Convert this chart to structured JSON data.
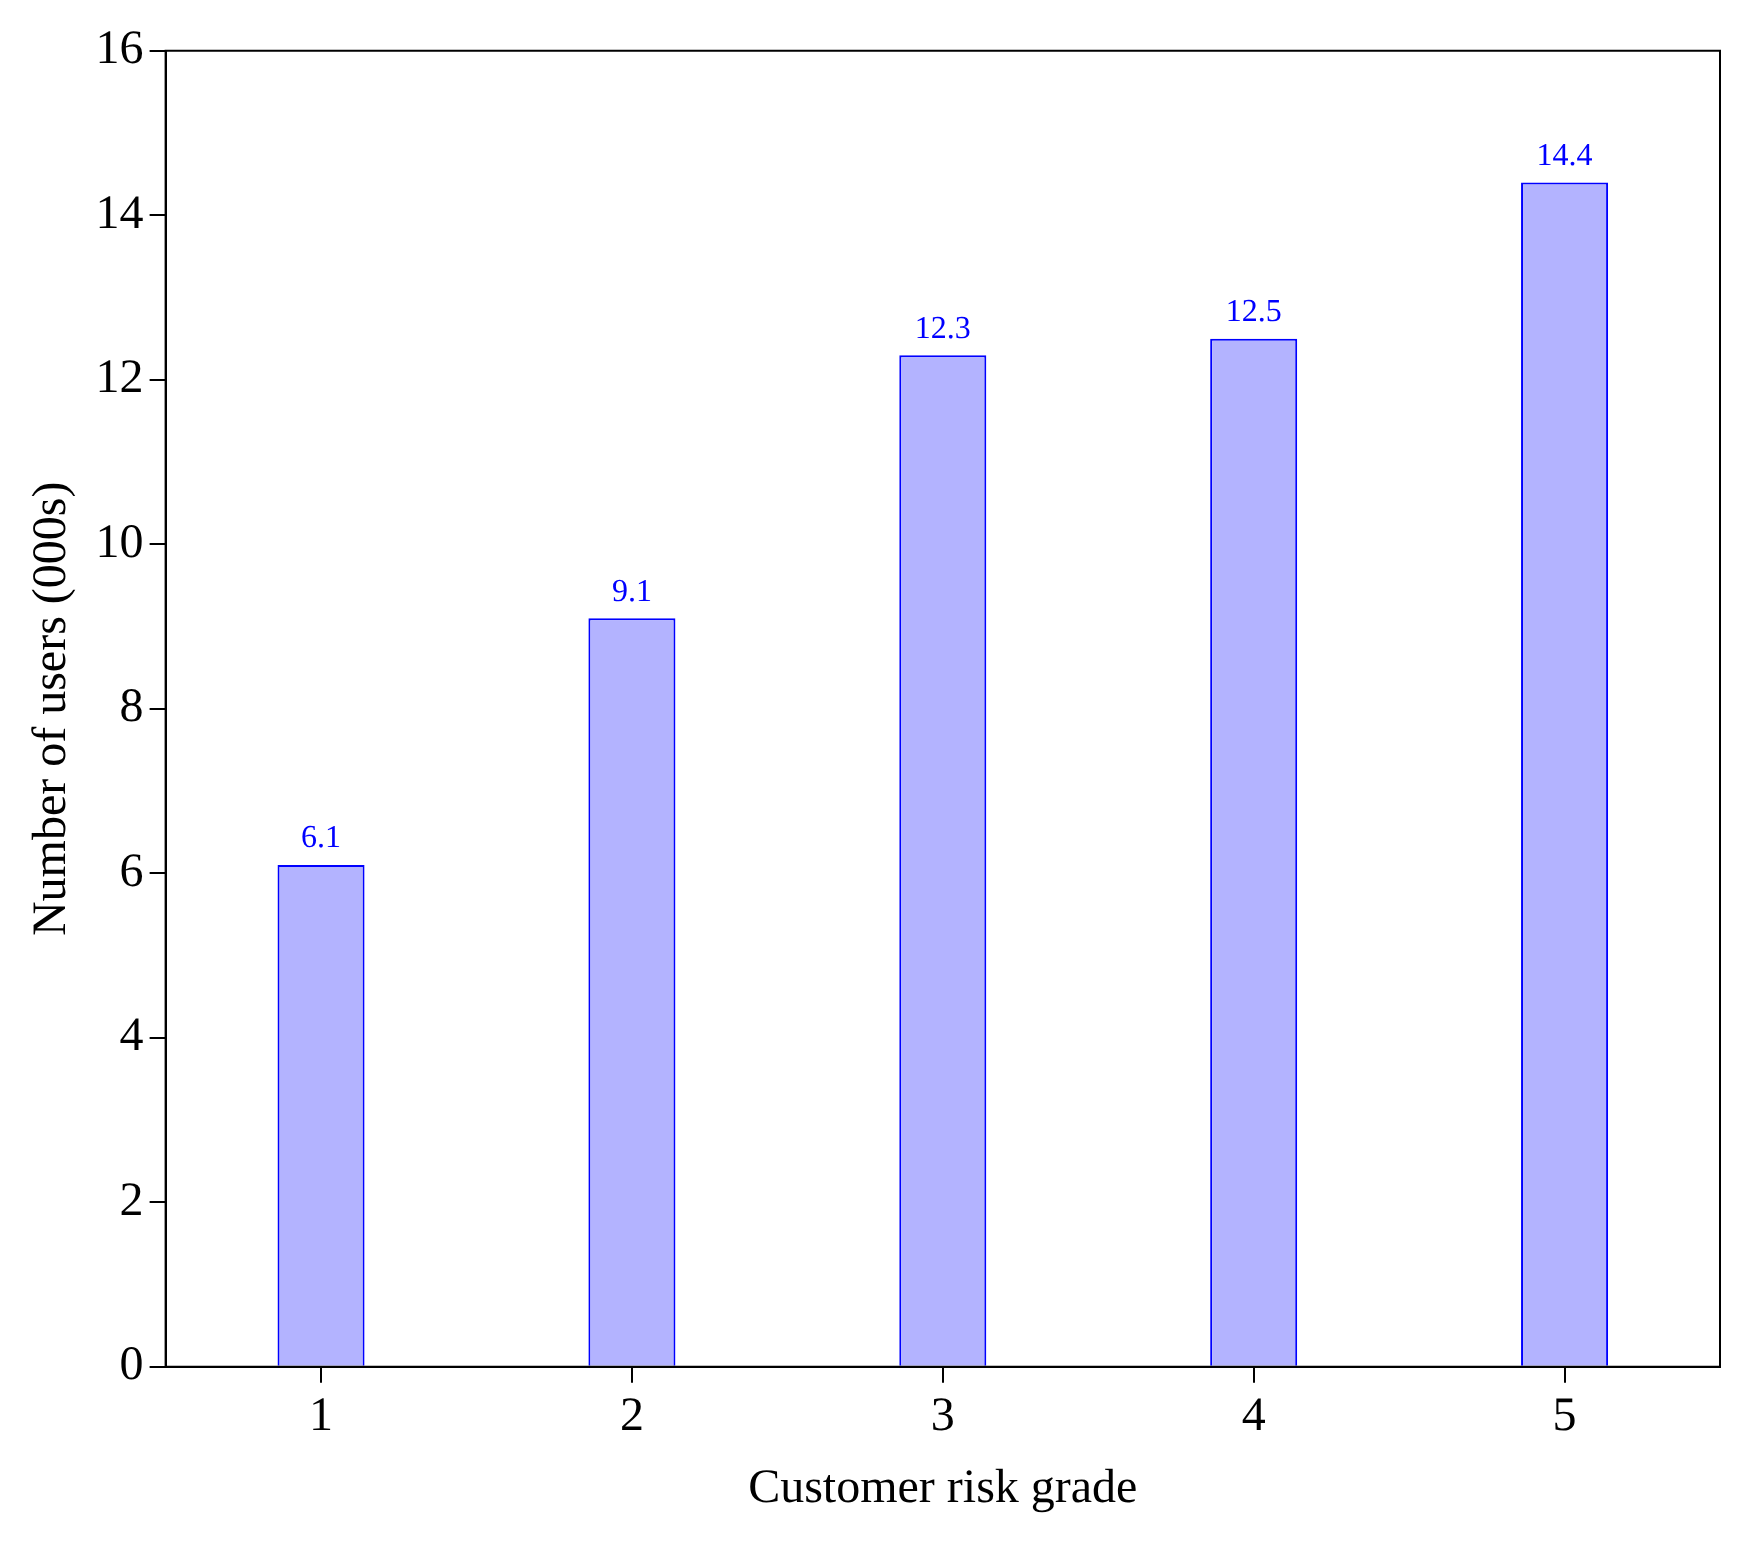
{
  "chart_data": {
    "type": "bar",
    "xlabel": "Customer risk grade",
    "ylabel": "Number of users (000s)",
    "categories": [
      "1",
      "2",
      "3",
      "4",
      "5"
    ],
    "series": [
      {
        "color": "#b3b3ff",
        "values": [
          6.1,
          9.1,
          12.3,
          12.5,
          14.4
        ]
      }
    ],
    "ylim": [
      0,
      16
    ],
    "yticks": [
      0,
      2,
      4,
      6,
      8,
      10,
      12,
      14,
      16
    ],
    "grid": false,
    "legend": false,
    "data_labels": true
  }
}
